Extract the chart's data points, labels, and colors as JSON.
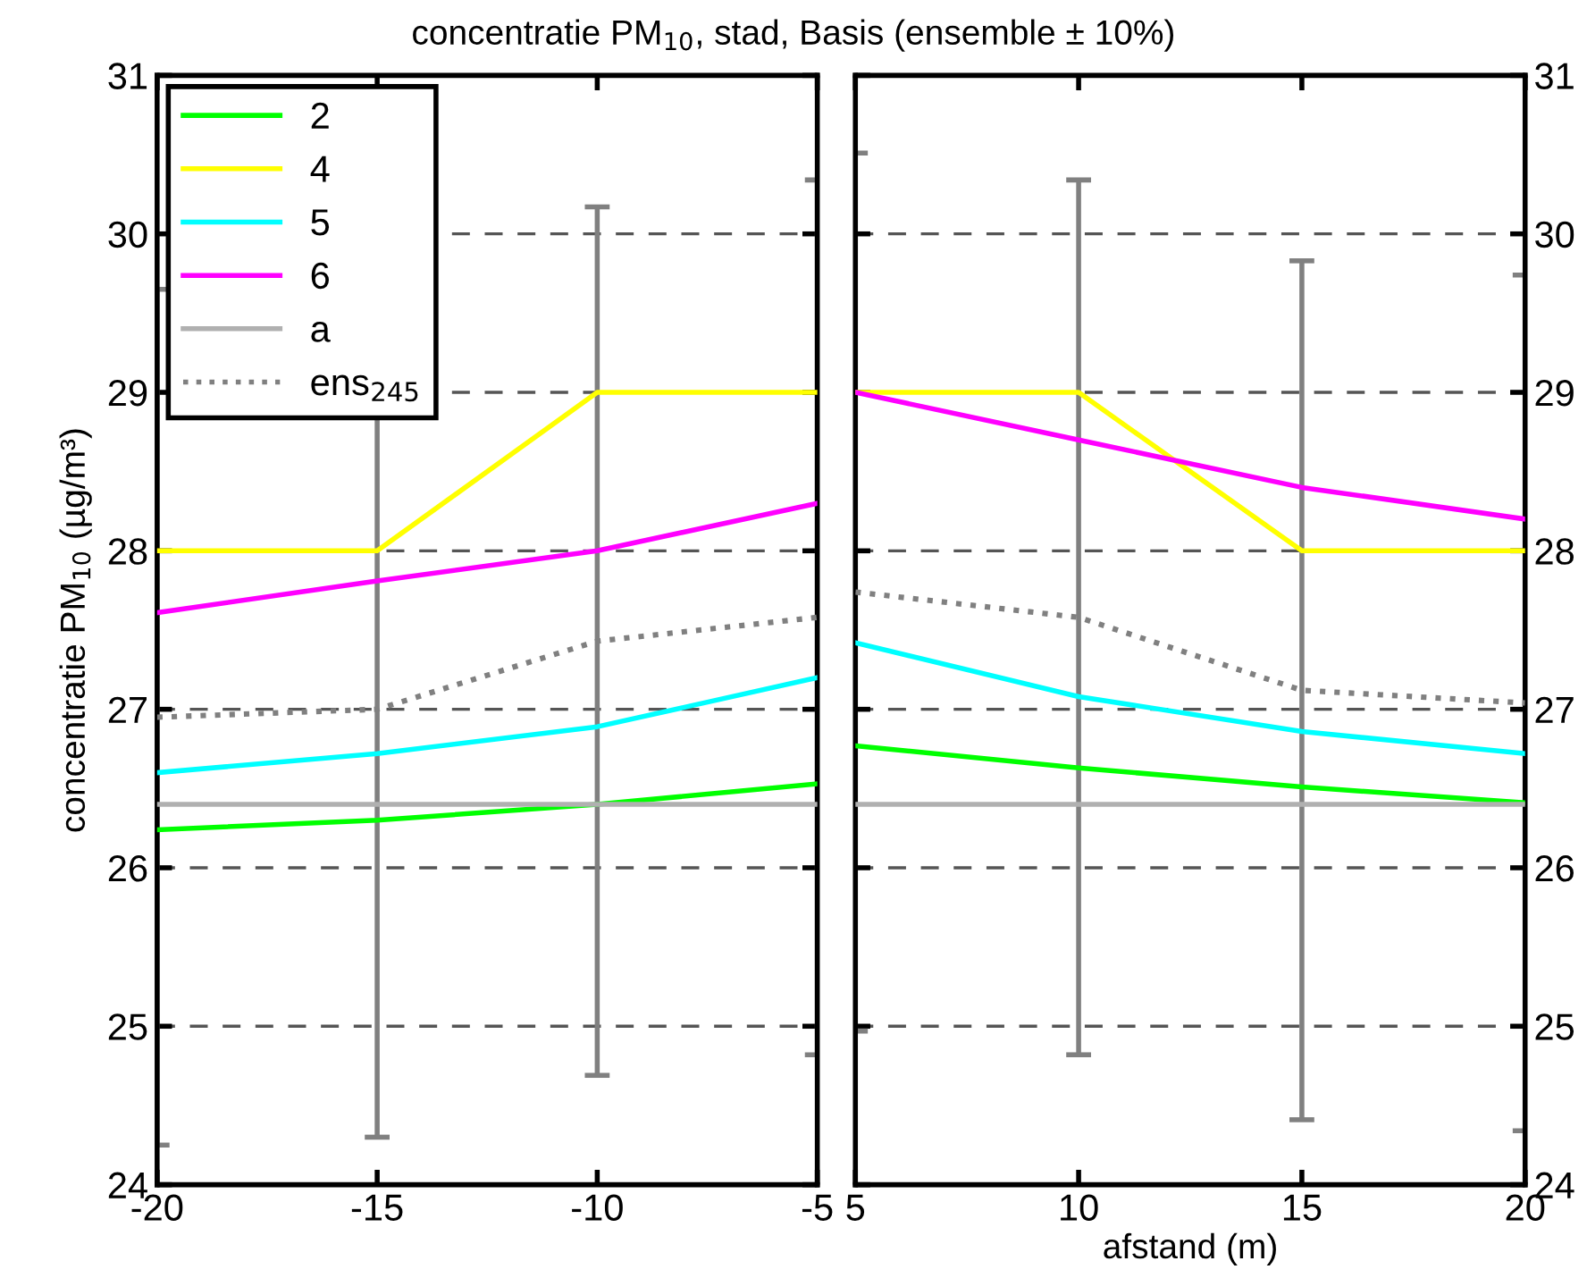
{
  "chart_data": [
    {
      "type": "line",
      "title": "concentratie PM$_{10}$, stad, Basis (ensemble ± 10%)",
      "ylabel": "concentratie PM$_{10}$ (µg/m³)",
      "x": [
        -20,
        -15,
        -10,
        -5
      ],
      "xlim": [
        -20,
        -5
      ],
      "xticks": [
        -20,
        -15,
        -10,
        -5
      ],
      "ylim": [
        24,
        31
      ],
      "yticks": [
        24,
        25,
        26,
        27,
        28,
        29,
        30,
        31
      ],
      "grid": "y",
      "legend": "top left",
      "series": [
        {
          "name": "2",
          "color": "#00ff00",
          "values": [
            26.24,
            26.3,
            26.4,
            26.53
          ]
        },
        {
          "name": "4",
          "color": "#ffff00",
          "values": [
            28,
            28,
            29,
            29
          ]
        },
        {
          "name": "5",
          "color": "#00ffff",
          "values": [
            26.6,
            26.72,
            26.89,
            27.2
          ]
        },
        {
          "name": "6",
          "color": "#ff00ff",
          "values": [
            27.61,
            27.81,
            28.0,
            28.3
          ]
        },
        {
          "name": "a",
          "color": "#b0b0b0",
          "values": [
            26.4,
            26.4,
            26.4,
            26.4
          ]
        },
        {
          "name": "ens$_{245}$",
          "color": "#808080",
          "line_style": "dotted",
          "values": [
            26.95,
            27.0,
            27.43,
            27.58
          ],
          "errors": [
            2.7,
            2.7,
            2.74,
            2.76
          ]
        }
      ]
    },
    {
      "type": "line",
      "xlabel": "afstand (m)",
      "x": [
        5,
        10,
        15,
        20
      ],
      "xlim": [
        5,
        20
      ],
      "xticks": [
        5,
        10,
        15,
        20
      ],
      "ylim": [
        24,
        31
      ],
      "yticks": [
        24,
        25,
        26,
        27,
        28,
        29,
        30,
        31
      ],
      "grid": "y",
      "series": [
        {
          "color": "#00ff00",
          "values": [
            26.77,
            26.63,
            26.51,
            26.41
          ]
        },
        {
          "color": "#ffff00",
          "values": [
            29,
            29,
            28,
            28
          ]
        },
        {
          "color": "#00ffff",
          "values": [
            27.42,
            27.08,
            26.86,
            26.72
          ]
        },
        {
          "color": "#ff00ff",
          "values": [
            29,
            28.7,
            28.4,
            28.2
          ]
        },
        {
          "color": "#b0b0b0",
          "values": [
            26.4,
            26.4,
            26.4,
            26.4
          ]
        },
        {
          "color": "#808080",
          "line_style": "dotted",
          "values": [
            27.74,
            27.58,
            27.12,
            27.04
          ],
          "errors": [
            2.77,
            2.76,
            2.71,
            2.7
          ]
        }
      ]
    }
  ]
}
